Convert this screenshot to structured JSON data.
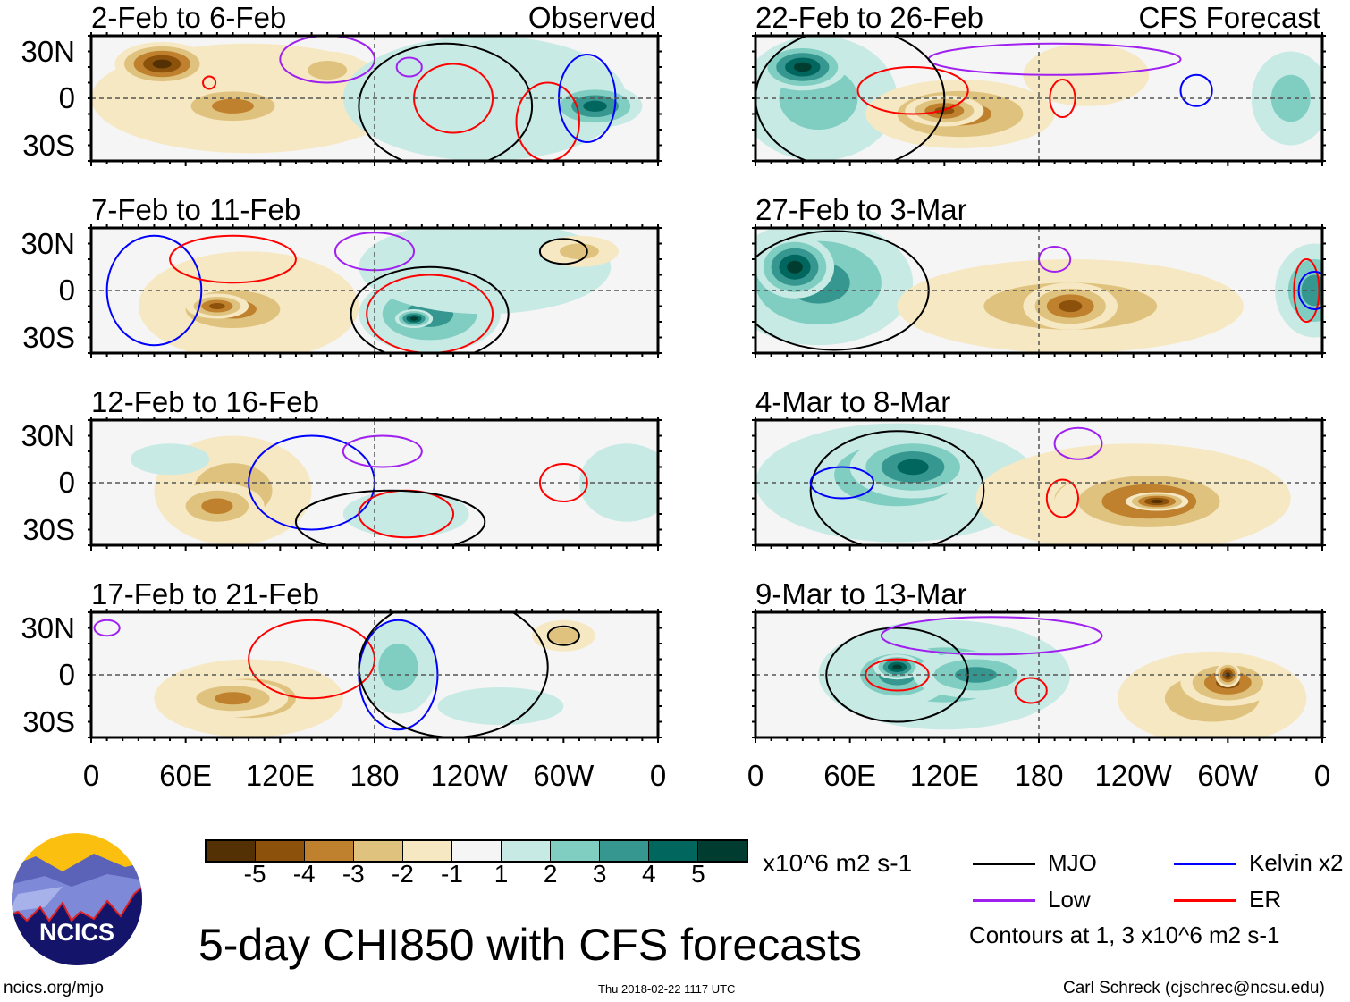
{
  "figure_title": "5-day CHI850 with CFS forecasts",
  "footer": {
    "left": "ncics.org/mjo",
    "center": "Thu 2018-02-22 1117 UTC",
    "right": "Carl Schreck (cjschrec@ncsu.edu)"
  },
  "logo_text": "NCICS",
  "lat_labels": [
    "30N",
    "0",
    "30S"
  ],
  "lon_labels": [
    "0",
    "60E",
    "120E",
    "180",
    "120W",
    "60W",
    "0"
  ],
  "colorbar": {
    "units": "x10^6 m2 s-1",
    "labels": [
      "-5",
      "-4",
      "-3",
      "-2",
      "-1",
      "1",
      "2",
      "3",
      "4",
      "5"
    ],
    "colors": [
      "#543005",
      "#8c510a",
      "#bf812d",
      "#dfc27d",
      "#f6e8c3",
      "#f5f5f5",
      "#c7eae5",
      "#80cdc1",
      "#35978f",
      "#01665e",
      "#003c30"
    ]
  },
  "legend": {
    "items": [
      {
        "label": "MJO",
        "color": "#000000"
      },
      {
        "label": "Kelvin x2",
        "color": "#0000ff"
      },
      {
        "label": "Low",
        "color": "#a020f0"
      },
      {
        "label": "ER",
        "color": "#ff0000"
      }
    ],
    "note": "Contours at 1, 3 x10^6 m2 s-1"
  },
  "panels": [
    {
      "title": "2-Feb to 6-Feb",
      "tag": "Observed",
      "blobs": [
        [
          100,
          0,
          100,
          35,
          -1
        ],
        [
          45,
          22,
          30,
          14,
          -5
        ],
        [
          90,
          -5,
          40,
          14,
          -3
        ],
        [
          150,
          18,
          25,
          12,
          -2
        ],
        [
          225,
          -5,
          45,
          30,
          5
        ],
        [
          250,
          0,
          90,
          40,
          1
        ],
        [
          320,
          -5,
          30,
          14,
          4
        ]
      ],
      "contours": [
        [
          "mjo",
          225,
          -5,
          55,
          40
        ],
        [
          "er",
          230,
          0,
          25,
          22
        ],
        [
          "er",
          290,
          -15,
          20,
          25
        ],
        [
          "low",
          202,
          20,
          8,
          6
        ],
        [
          "low",
          150,
          25,
          30,
          15
        ],
        [
          "kelvin",
          315,
          0,
          18,
          28
        ],
        [
          "er",
          75,
          10,
          4,
          4
        ]
      ]
    },
    {
      "title": "22-Feb to 26-Feb",
      "tag": "CFS Forecast",
      "blobs": [
        [
          40,
          0,
          50,
          40,
          2
        ],
        [
          30,
          20,
          28,
          15,
          5
        ],
        [
          130,
          -10,
          60,
          22,
          -3
        ],
        [
          120,
          -8,
          25,
          10,
          -4
        ],
        [
          340,
          0,
          25,
          30,
          2
        ],
        [
          210,
          15,
          40,
          20,
          -1
        ]
      ],
      "contours": [
        [
          "er",
          100,
          5,
          35,
          15
        ],
        [
          "er",
          195,
          0,
          8,
          12
        ],
        [
          "low",
          190,
          25,
          80,
          10
        ],
        [
          "kelvin",
          280,
          5,
          10,
          10
        ],
        [
          "mjo",
          60,
          0,
          60,
          45
        ]
      ]
    },
    {
      "title": "7-Feb to 11-Feb",
      "tag": "",
      "blobs": [
        [
          100,
          -10,
          70,
          35,
          -1
        ],
        [
          90,
          -12,
          45,
          18,
          -3
        ],
        [
          80,
          -10,
          20,
          8,
          -4
        ],
        [
          215,
          -15,
          45,
          25,
          3
        ],
        [
          205,
          -18,
          12,
          6,
          5
        ],
        [
          250,
          15,
          80,
          30,
          1
        ],
        [
          310,
          25,
          25,
          10,
          -2
        ]
      ],
      "contours": [
        [
          "mjo",
          215,
          -15,
          50,
          30
        ],
        [
          "er",
          215,
          -15,
          40,
          25
        ],
        [
          "kelvin",
          40,
          0,
          30,
          35
        ],
        [
          "er",
          90,
          20,
          40,
          15
        ],
        [
          "low",
          180,
          25,
          25,
          12
        ],
        [
          "mjo",
          300,
          25,
          15,
          8
        ]
      ]
    },
    {
      "title": "27-Feb to 3-Mar",
      "tag": "",
      "blobs": [
        [
          40,
          5,
          60,
          40,
          3
        ],
        [
          25,
          15,
          25,
          20,
          5
        ],
        [
          200,
          -10,
          110,
          30,
          -2
        ],
        [
          200,
          -10,
          30,
          15,
          -4
        ],
        [
          355,
          0,
          25,
          30,
          3
        ]
      ],
      "contours": [
        [
          "mjo",
          50,
          0,
          60,
          38
        ],
        [
          "low",
          190,
          20,
          10,
          8
        ],
        [
          "er",
          350,
          0,
          8,
          20
        ],
        [
          "kelvin",
          355,
          0,
          10,
          12
        ]
      ]
    },
    {
      "title": "12-Feb to 16-Feb",
      "tag": "",
      "blobs": [
        [
          90,
          -5,
          50,
          35,
          -2
        ],
        [
          80,
          -15,
          30,
          15,
          -3
        ],
        [
          50,
          15,
          25,
          10,
          1
        ],
        [
          200,
          -20,
          40,
          15,
          1
        ],
        [
          340,
          0,
          30,
          25,
          1
        ]
      ],
      "contours": [
        [
          "kelvin",
          140,
          0,
          40,
          30
        ],
        [
          "er",
          200,
          -20,
          30,
          15
        ],
        [
          "low",
          185,
          20,
          25,
          10
        ],
        [
          "mjo",
          190,
          -25,
          60,
          20
        ],
        [
          "er",
          300,
          0,
          15,
          12
        ]
      ]
    },
    {
      "title": "4-Mar to 8-Mar",
      "tag": "",
      "blobs": [
        [
          90,
          0,
          90,
          38,
          2
        ],
        [
          90,
          5,
          60,
          30,
          3
        ],
        [
          100,
          10,
          40,
          20,
          4
        ],
        [
          240,
          -10,
          100,
          35,
          -2
        ],
        [
          250,
          -12,
          60,
          22,
          -4
        ],
        [
          255,
          -12,
          20,
          6,
          -5
        ]
      ],
      "contours": [
        [
          "mjo",
          90,
          -5,
          55,
          38
        ],
        [
          "kelvin",
          55,
          0,
          20,
          10
        ],
        [
          "er",
          195,
          -10,
          10,
          12
        ],
        [
          "low",
          205,
          25,
          15,
          10
        ]
      ]
    },
    {
      "title": "17-Feb to 21-Feb",
      "tag": "",
      "blobs": [
        [
          100,
          -15,
          60,
          25,
          -2
        ],
        [
          90,
          -15,
          35,
          12,
          -3
        ],
        [
          195,
          5,
          25,
          30,
          2
        ],
        [
          300,
          25,
          20,
          10,
          -2
        ],
        [
          260,
          -20,
          40,
          12,
          1
        ]
      ],
      "contours": [
        [
          "er",
          140,
          10,
          40,
          25
        ],
        [
          "kelvin",
          195,
          0,
          25,
          35
        ],
        [
          "mjo",
          300,
          25,
          10,
          6
        ],
        [
          "low",
          10,
          30,
          8,
          5
        ],
        [
          "mjo",
          230,
          5,
          60,
          45
        ]
      ]
    },
    {
      "title": "9-Mar to 13-Mar",
      "tag": "",
      "blobs": [
        [
          120,
          0,
          80,
          35,
          2
        ],
        [
          90,
          0,
          35,
          20,
          3
        ],
        [
          90,
          5,
          15,
          8,
          5
        ],
        [
          140,
          0,
          40,
          15,
          3
        ],
        [
          290,
          -15,
          60,
          30,
          -2
        ],
        [
          300,
          -5,
          30,
          15,
          -4
        ],
        [
          300,
          0,
          8,
          8,
          -5
        ]
      ],
      "contours": [
        [
          "mjo",
          90,
          0,
          45,
          30
        ],
        [
          "er",
          90,
          0,
          20,
          10
        ],
        [
          "er",
          175,
          -10,
          10,
          8
        ],
        [
          "low",
          150,
          25,
          70,
          12
        ]
      ]
    }
  ]
}
